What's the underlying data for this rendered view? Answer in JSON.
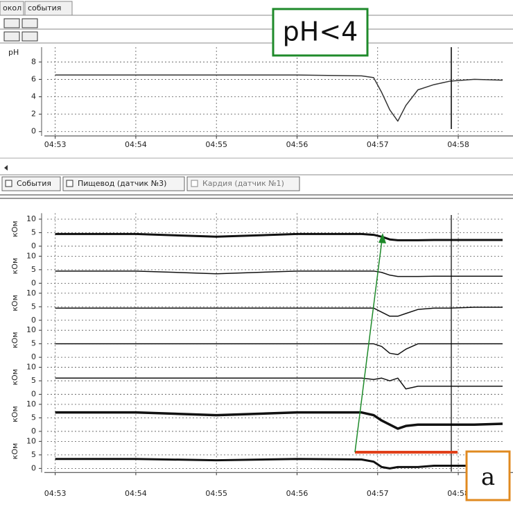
{
  "tabs": [
    "окол",
    "события"
  ],
  "annotation": "pH<4",
  "panel_label": "a",
  "bottom_tabs": [
    "События",
    "Пищевод (датчик №3)",
    "Кардия (датчик №1)"
  ],
  "chart_data": [
    {
      "type": "line",
      "ylabel": "pH",
      "x": [
        293,
        294,
        295,
        296,
        296.8,
        296.95,
        297.05,
        297.15,
        297.25,
        297.35,
        297.5,
        297.7,
        297.9,
        298.2,
        298.55
      ],
      "xlim": [
        292.9,
        298.55
      ],
      "xticks": [
        {
          "value": 293,
          "label": "04:53"
        },
        {
          "value": 294,
          "label": "04:54"
        },
        {
          "value": 295,
          "label": "04:55"
        },
        {
          "value": 296,
          "label": "04:56"
        },
        {
          "value": 297,
          "label": "04:57"
        },
        {
          "value": 298,
          "label": "04:58"
        }
      ],
      "ylim": [
        -0.5,
        9.7
      ],
      "yticks": [
        0,
        2,
        4,
        6,
        8
      ],
      "grid": true,
      "series": [
        {
          "color": "#333333",
          "width": 1.5,
          "values": [
            6.5,
            6.5,
            6.5,
            6.5,
            6.4,
            6.2,
            4.5,
            2.5,
            1.2,
            3.0,
            4.8,
            5.4,
            5.8,
            6.0,
            5.9
          ]
        }
      ]
    },
    {
      "type": "line",
      "ylabel": "кОм",
      "x": [
        293,
        294,
        295,
        296,
        296.8,
        296.95,
        297.05,
        297.15,
        297.25,
        297.35,
        297.5,
        297.7,
        297.9,
        298.2,
        298.55
      ],
      "xlim": [
        292.9,
        298.55
      ],
      "xticks": [
        {
          "value": 293,
          "label": "04:53"
        },
        {
          "value": 294,
          "label": "04:54"
        },
        {
          "value": 295,
          "label": "04:55"
        },
        {
          "value": 296,
          "label": "04:56"
        },
        {
          "value": 297,
          "label": "04:57"
        },
        {
          "value": 298,
          "label": "04:58"
        }
      ],
      "ylim": [
        -1.5,
        12.2
      ],
      "yticks": [
        0,
        5,
        10
      ],
      "grid": true,
      "series": [
        {
          "color": "#111111",
          "width": 3,
          "values": [
            4.5,
            4.5,
            3.5,
            4.5,
            4.5,
            4.2,
            3.5,
            2.5,
            2.2,
            2.2,
            2.2,
            2.3,
            2.3,
            2.3,
            2.3
          ]
        },
        {
          "color": "#111111",
          "width": 1.5,
          "values": [
            4.5,
            4.5,
            3.5,
            4.5,
            4.5,
            4.5,
            4.0,
            3.0,
            2.5,
            2.5,
            2.5,
            2.6,
            2.6,
            2.6,
            2.6
          ]
        },
        {
          "color": "#111111",
          "width": 1.5,
          "values": [
            4.5,
            4.5,
            4.5,
            4.5,
            4.5,
            4.5,
            3,
            1.5,
            1.5,
            2.5,
            4,
            4.5,
            4.5,
            4.8,
            4.8
          ]
        },
        {
          "color": "#111111",
          "width": 1.5,
          "values": [
            5,
            5,
            5,
            5,
            5,
            5,
            4,
            1.5,
            1,
            3,
            5,
            5,
            5,
            5,
            5
          ]
        },
        {
          "color": "#111111",
          "width": 1.5,
          "values": [
            6,
            6,
            6,
            6,
            6,
            5.5,
            6,
            5,
            6,
            2,
            3,
            3,
            3,
            3,
            3
          ]
        },
        {
          "color": "#111111",
          "width": 3.5,
          "values": [
            7,
            7,
            6,
            7,
            7,
            6,
            4,
            2.5,
            1,
            2,
            2.5,
            2.5,
            2.5,
            2.5,
            2.8
          ]
        },
        {
          "color": "#111111",
          "width": 3,
          "values": [
            3.5,
            3.5,
            3,
            3.5,
            3.3,
            2.5,
            0.5,
            0,
            0.5,
            0.5,
            0.5,
            1,
            1,
            1,
            1.2
          ]
        }
      ]
    }
  ]
}
